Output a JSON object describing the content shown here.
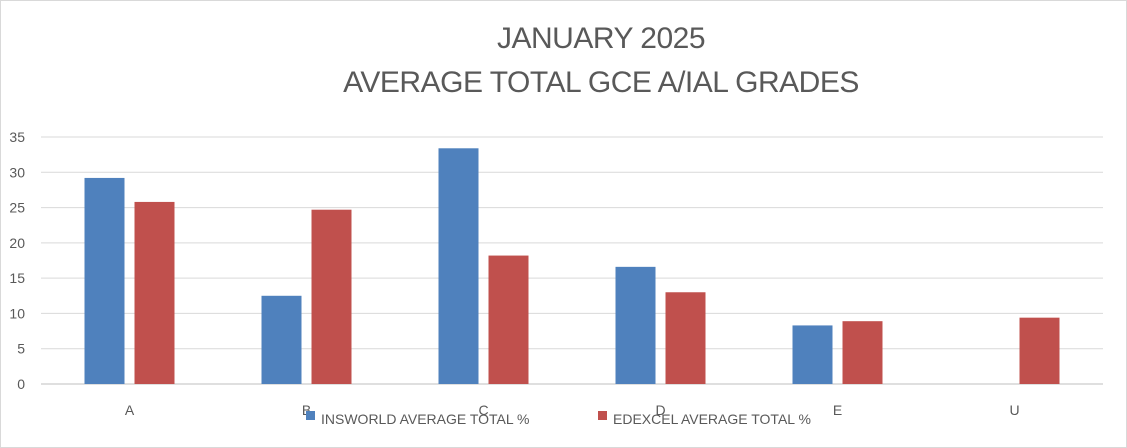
{
  "chart_data": {
    "type": "bar",
    "title": [
      "JANUARY 2025",
      "AVERAGE TOTAL GCE A/IAL GRADES"
    ],
    "categories": [
      "A",
      "B",
      "C",
      "D",
      "E",
      "U"
    ],
    "series": [
      {
        "name": "INSWORLD AVERAGE TOTAL %",
        "color": "#4f81bd",
        "values": [
          29.2,
          12.5,
          33.4,
          16.6,
          8.3,
          0
        ]
      },
      {
        "name": "EDEXCEL AVERAGE TOTAL %",
        "color": "#c0504d",
        "values": [
          25.8,
          24.7,
          18.2,
          13.0,
          8.9,
          9.4
        ]
      }
    ],
    "yticks": [
      0,
      5,
      10,
      15,
      20,
      25,
      30,
      35
    ],
    "ylim": [
      0,
      35
    ],
    "grid": true,
    "legend": "bottom"
  }
}
